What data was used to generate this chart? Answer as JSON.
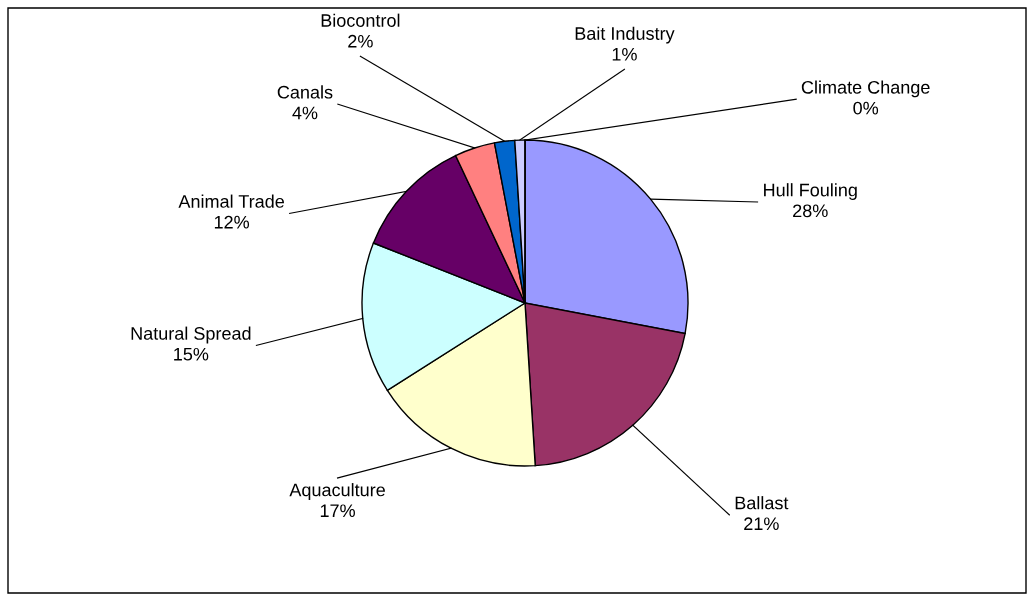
{
  "chart_data": {
    "type": "pie",
    "categories": [
      "Hull Fouling",
      "Ballast",
      "Aquaculture",
      "Natural Spread",
      "Animal Trade",
      "Canals",
      "Biocontrol",
      "Bait Industry",
      "Climate Change"
    ],
    "values": [
      28,
      21,
      17,
      15,
      12,
      4,
      2,
      1,
      0
    ],
    "value_labels": [
      "28%",
      "21%",
      "17%",
      "15%",
      "12%",
      "4%",
      "2%",
      "1%",
      "0%"
    ],
    "colors": [
      "#9999ff",
      "#993366",
      "#ffffcc",
      "#ccffff",
      "#660066",
      "#ff8080",
      "#0066cc",
      "#ccccff",
      "#000080"
    ]
  }
}
